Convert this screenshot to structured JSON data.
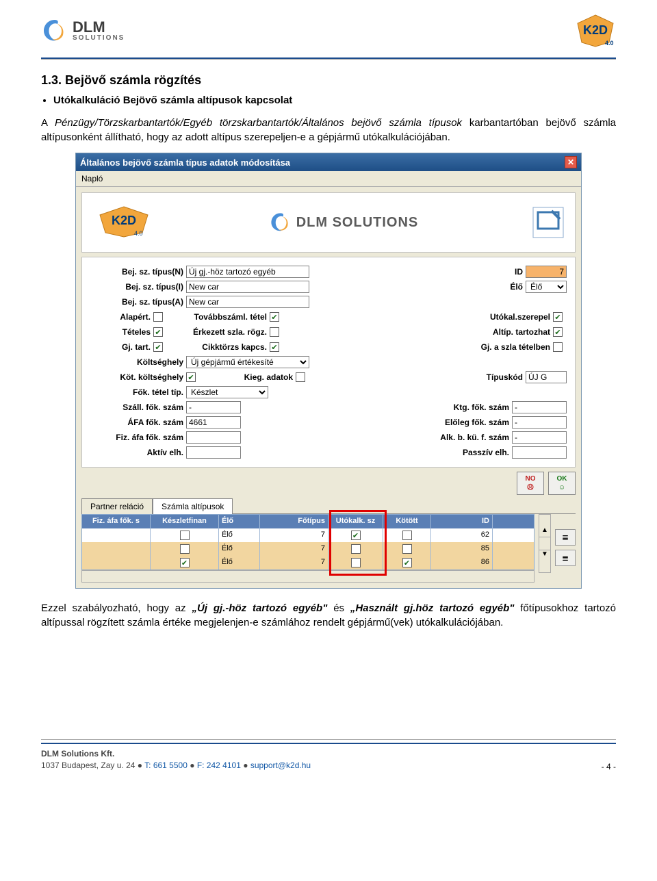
{
  "header": {
    "dlm_text": "DLM",
    "dlm_sub": "SOLUTIONS",
    "k2d_text": "K2D",
    "k2d_ver": "4.0"
  },
  "section": {
    "heading": "1.3. Bejövő számla rögzítés",
    "bullet": "Utókalkuláció Bejövő számla altípusok kapcsolat",
    "para1_pre": "A ",
    "para1_italic": "Pénzügy/Törzskarbantartók/Egyéb törzskarbantartók/Általános bejövő számla típusok",
    "para1_post": " karbantartóban bejövő számla altípusonként állítható, hogy az adott altípus szerepeljen-e a gépjármű utókalkulációjában.",
    "para2_pre": "Ezzel szabályozható, hogy az ",
    "para2_bi1": "„Új gj.-höz tartozó egyéb\"",
    "para2_mid": " és ",
    "para2_bi2": "„Használt gj.höz tartozó egyéb\"",
    "para2_post": " főtípusokhoz tartozó altípussal rögzített számla értéke megjelenjen-e számlához rendelt gépjármű(vek) utókalkulációjában."
  },
  "win": {
    "title": "Általános bejövő számla típus adatok módosítása",
    "menu": "Napló",
    "labels": {
      "l_typeN": "Bej. sz. típus(N)",
      "l_typeI": "Bej. sz. típus(I)",
      "l_typeA": "Bej. sz. típus(A)",
      "l_id": "ID",
      "l_elo": "Élő",
      "l_alapert": "Alapért.",
      "l_tovabb": "Továbbszáml. tétel",
      "l_utokal": "Utókal.szerepel",
      "l_teteles": "Tételes",
      "l_erkezett": "Érkezett szla. rögz.",
      "l_altip": "Altíp. tartozhat",
      "l_gjtart": "Gj. tart.",
      "l_cikktorzs": "Cikktörzs kapcs.",
      "l_gjszla": "Gj. a szla tételben",
      "l_koltseg": "Költséghely",
      "l_kotkolt": "Köt. költséghely",
      "l_kieg": "Kieg. adatok",
      "l_tipuskod": "Típuskód",
      "l_foktetel": "Fők. tétel típ.",
      "l_szallfok": "Száll. fők. szám",
      "l_ktgfok": "Ktg. fők. szám",
      "l_afafok": "ÁFA fők. szám",
      "l_eloleg": "Előleg fők. szám",
      "l_fizafa": "Fiz. áfa fők. szám",
      "l_alkbku": "Alk. b. kü. f. szám",
      "l_aktiv": "Aktív elh.",
      "l_passziv": "Passzív elh."
    },
    "values": {
      "typeN": "Új gj.-höz tartozó egyéb",
      "typeI": "New car",
      "typeA": "New car",
      "id": "7",
      "elo": "Élő",
      "koltseg": "Új gépjármű értékesíté",
      "tipuskod": "ÚJ G",
      "foktetel": "Készlet",
      "szallfok": "-",
      "ktgfok": "-",
      "afafok": "4661",
      "eloleg": "-",
      "fizafa": "",
      "alkbku": "-",
      "aktiv": "",
      "passziv": ""
    },
    "checks": {
      "alapert": false,
      "tovabb": true,
      "utokal": true,
      "teteles": true,
      "erkezett": false,
      "altip": true,
      "gjtart": true,
      "cikktorzs": true,
      "gjszla": false,
      "kotkolt": true,
      "kieg": false
    },
    "buttons": {
      "no": "NO",
      "ok": "OK"
    },
    "tabs": {
      "t1": "Partner reláció",
      "t2": "Számla altípusok"
    },
    "grid": {
      "headers": [
        "Fiz. áfa fők. s",
        "Készletfinan",
        "Élő",
        "Főtípus",
        "Utókalk. sz",
        "Kötött",
        "ID"
      ],
      "rows": [
        {
          "c1": "",
          "c2": false,
          "c3": "Élő",
          "c4": "7",
          "c5": true,
          "c6": false,
          "c7": "62",
          "hl": false
        },
        {
          "c1": "",
          "c2": false,
          "c3": "Élő",
          "c4": "7",
          "c5": false,
          "c6": false,
          "c7": "85",
          "hl": true
        },
        {
          "c1": "",
          "c2": true,
          "c3": "Élő",
          "c4": "7",
          "c5": false,
          "c6": true,
          "c7": "86",
          "hl": true
        }
      ]
    }
  },
  "footer": {
    "company": "DLM Solutions Kft.",
    "addr": "1037 Budapest, Zay u. 24",
    "bullet": " ● ",
    "tel": "T: 661 5500",
    "fax": "F: 242 4101",
    "email": "support@k2d.hu",
    "page": "- 4 -"
  },
  "colors": {
    "titlebar_from": "#3b6ea5",
    "titlebar_to": "#1e4e86",
    "grid_header": "#5a7fb5",
    "orange_field": "#f7b36b",
    "orange_row": "#f2d6a0",
    "red_highlight": "#e00000"
  }
}
